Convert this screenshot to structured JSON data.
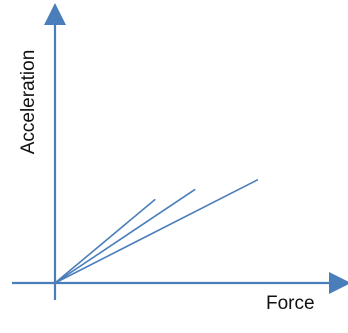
{
  "chart_data": {
    "type": "line",
    "title": "",
    "xlabel": "Force",
    "ylabel": "Acceleration",
    "grid": false,
    "legend": "none",
    "series": [
      {
        "x": [
          0,
          1
        ],
        "y": [
          0,
          1.0
        ]
      },
      {
        "x": [
          0,
          1
        ],
        "y": [
          0,
          0.8
        ]
      },
      {
        "x": [
          0,
          1
        ],
        "y": [
          0,
          0.61
        ]
      }
    ],
    "series_end_x": [
      0.35,
      0.49,
      0.71
    ],
    "colors": {
      "axis": "#4a7ebb",
      "line": "#4a7ebb",
      "text": "#111111"
    }
  }
}
